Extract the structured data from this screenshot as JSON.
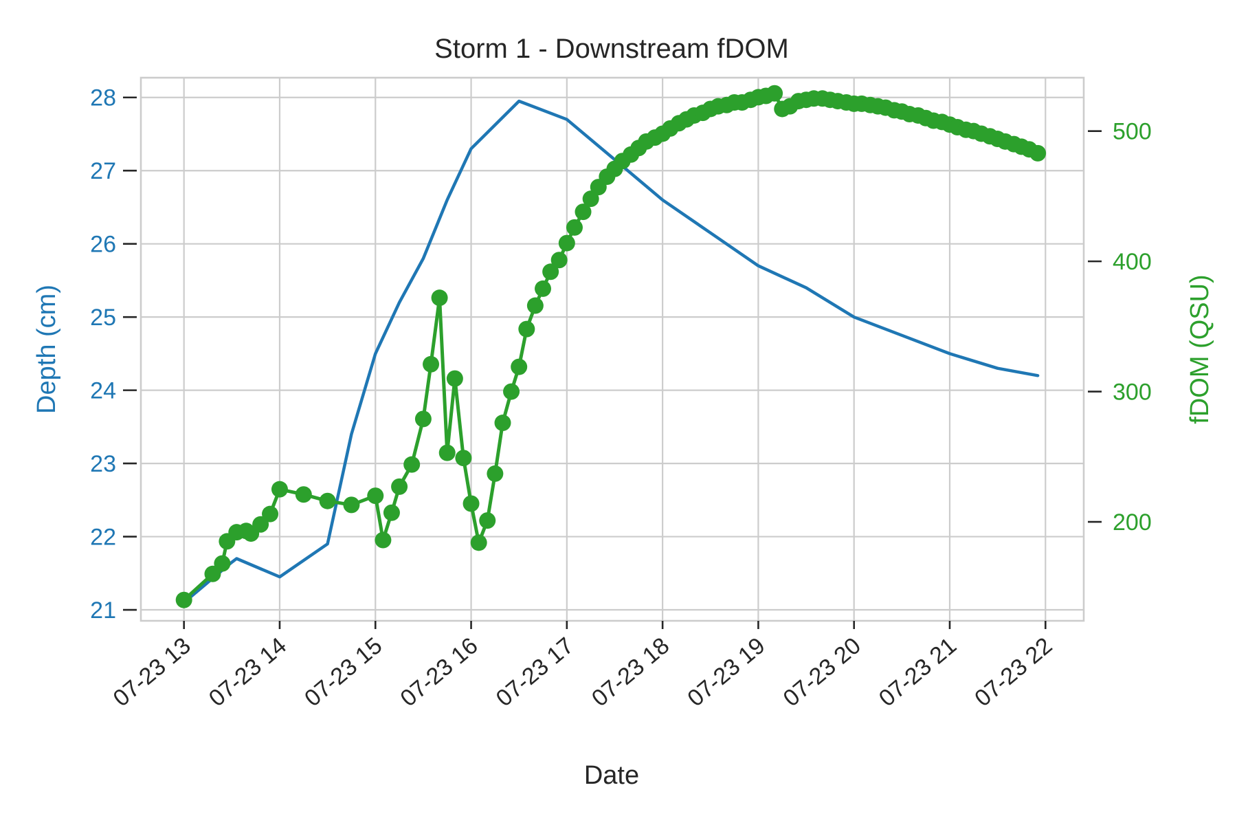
{
  "chart_data": {
    "type": "line",
    "title": "Storm 1 - Downstream fDOM",
    "xlabel": "Date",
    "ylabel_left": "Depth (cm)",
    "ylabel_right": "fDOM (QSU)",
    "x_ticks": [
      "07-23 13",
      "07-23 14",
      "07-23 15",
      "07-23 16",
      "07-23 17",
      "07-23 18",
      "07-23 19",
      "07-23 20",
      "07-23 21",
      "07-23 22"
    ],
    "x_tick_hours": [
      13,
      14,
      15,
      16,
      17,
      18,
      19,
      20,
      21,
      22
    ],
    "xlim": [
      12.55,
      22.4
    ],
    "y_left": {
      "ticks": [
        21,
        22,
        23,
        24,
        25,
        26,
        27,
        28
      ],
      "ylim": [
        20.85,
        28.27
      ]
    },
    "y_right": {
      "ticks": [
        200,
        300,
        400,
        500
      ],
      "ylim": [
        124,
        541
      ]
    },
    "grid": true,
    "colors": {
      "depth": "#1f77b4",
      "fdom": "#2ca02c",
      "text": "#262626",
      "grid": "#cccccc"
    },
    "series": [
      {
        "key": "depth",
        "axis": "left",
        "x_hours": [
          13.0,
          13.5,
          13.55,
          14.0,
          14.5,
          14.5,
          14.75,
          15.0,
          15.25,
          15.5,
          15.75,
          16.0,
          16.5,
          17.0,
          17.5,
          18.0,
          18.5,
          19.0,
          19.5,
          20.0,
          20.5,
          21.0,
          21.5,
          21.92
        ],
        "values": [
          21.1,
          21.65,
          21.7,
          21.45,
          21.9,
          21.9,
          23.4,
          24.5,
          25.2,
          25.8,
          26.6,
          27.3,
          27.95,
          27.7,
          27.15,
          26.6,
          26.15,
          25.7,
          25.4,
          25.0,
          24.75,
          24.5,
          24.3,
          24.2
        ]
      },
      {
        "key": "fdom",
        "axis": "right",
        "x_hours": [
          13.0,
          13.3,
          13.4,
          13.45,
          13.55,
          13.65,
          13.7,
          13.8,
          13.9,
          14.0,
          14.25,
          14.5,
          14.75,
          15.0,
          15.08,
          15.17,
          15.25,
          15.38,
          15.5,
          15.58,
          15.67,
          15.75,
          15.83,
          15.92,
          16.0,
          16.08,
          16.17,
          16.25,
          16.33,
          16.42,
          16.5,
          16.58,
          16.67,
          16.75,
          16.83,
          16.92,
          17.0,
          17.08,
          17.17,
          17.25,
          17.33,
          17.42,
          17.5,
          17.58,
          17.67,
          17.75,
          17.83,
          17.92,
          18.0,
          18.08,
          18.17,
          18.25,
          18.33,
          18.42,
          18.5,
          18.58,
          18.67,
          18.75,
          18.83,
          18.92,
          19.0,
          19.08,
          19.17,
          19.25,
          19.33,
          19.42,
          19.5,
          19.58,
          19.67,
          19.75,
          19.83,
          19.92,
          20.0,
          20.08,
          20.17,
          20.25,
          20.33,
          20.42,
          20.5,
          20.58,
          20.67,
          20.75,
          20.83,
          20.92,
          21.0,
          21.08,
          21.17,
          21.25,
          21.33,
          21.42,
          21.5,
          21.58,
          21.67,
          21.75,
          21.83,
          21.92
        ],
        "values": [
          140,
          160,
          168,
          185,
          192,
          193,
          191,
          198,
          206,
          225,
          221,
          216,
          213,
          220,
          186,
          207,
          227,
          244,
          279,
          321,
          372,
          253,
          310,
          249,
          214,
          184,
          201,
          237,
          276,
          300,
          319,
          348,
          366,
          379,
          392,
          401,
          414,
          426,
          438,
          448,
          457,
          465,
          471,
          477,
          482,
          487,
          492,
          495,
          498,
          502,
          506,
          509,
          512,
          514,
          517,
          519,
          520,
          522,
          522,
          524,
          526,
          527,
          529,
          517,
          519,
          523,
          524,
          525,
          525,
          524,
          523,
          522,
          521,
          521,
          520,
          519,
          518,
          516,
          515,
          513,
          512,
          510,
          508,
          507,
          505,
          503,
          501,
          500,
          498,
          496,
          494,
          492,
          490,
          488,
          486,
          483
        ]
      }
    ]
  }
}
